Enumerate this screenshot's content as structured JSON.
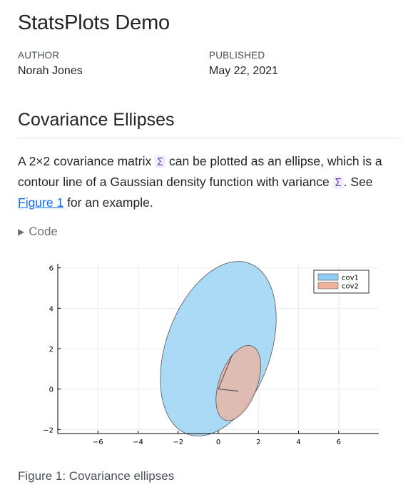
{
  "doc": {
    "title": "StatsPlots Demo",
    "author_label": "AUTHOR",
    "author": "Norah Jones",
    "published_label": "PUBLISHED",
    "published": "May 22, 2021"
  },
  "section": {
    "heading": "Covariance Ellipses",
    "para_part1": "A 2×2 covariance matrix ",
    "symbol": "Σ",
    "para_part2": " can be plotted as an ellipse, which is a contour line of a Gaussian density function with variance ",
    "para_part3": ". See ",
    "figure_link": "Figure 1",
    "para_part4": " for an example.",
    "code_label": "Code",
    "caption": "Figure 1: Covariance ellipses"
  },
  "colors": {
    "cov1_fill": "#8fcdf4",
    "cov2_fill": "#f0b29c",
    "edge": "#555555"
  },
  "chart_data": {
    "type": "area",
    "xlim": [
      -8,
      8
    ],
    "ylim": [
      -2.2,
      6.2
    ],
    "x_ticks": [
      -6,
      -4,
      -2,
      0,
      2,
      4,
      6
    ],
    "y_ticks": [
      -2,
      0,
      2,
      4,
      6
    ],
    "x_tick_labels": [
      "−6",
      "−4",
      "−2",
      "0",
      "2",
      "4",
      "6"
    ],
    "y_tick_labels": [
      "−2",
      "0",
      "2",
      "4",
      "6"
    ],
    "grid": true,
    "legend_position": "top-right",
    "series": [
      {
        "name": "cov1",
        "center": [
          0.0,
          2.0
        ],
        "semi_axes": [
          2.6,
          4.5
        ],
        "angle_deg": -20,
        "color": "#8fcdf4"
      },
      {
        "name": "cov2",
        "center": [
          1.0,
          0.3
        ],
        "semi_axes": [
          0.95,
          1.95
        ],
        "angle_deg": -20,
        "color": "#f0b29c"
      }
    ],
    "vectors": [
      {
        "from": [
          0.0,
          0.0
        ],
        "to": [
          0.7,
          1.7
        ]
      },
      {
        "from": [
          0.0,
          0.0
        ],
        "to": [
          1.0,
          -0.1
        ]
      }
    ]
  }
}
